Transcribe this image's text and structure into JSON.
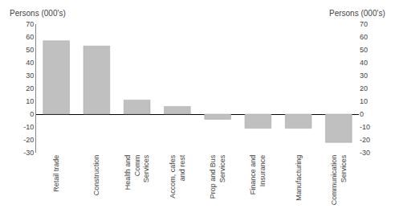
{
  "chart_data": {
    "type": "bar",
    "categories": [
      "Retail trade",
      "Construction",
      "Health and\nComm\nServices",
      "Accom, cafes\nand rest",
      "Prop and Bus\nServices",
      "Finance and\nInsurance",
      "Manufacturing",
      "Communication\nServices"
    ],
    "values": [
      57,
      53,
      11,
      6,
      -4,
      -11,
      -11,
      -22
    ],
    "color": "#c0c0c0",
    "ylabel": "Persons (000's)",
    "y2label": "Persons (000's)",
    "ylim": [
      -30,
      70
    ],
    "yticks": [
      -30,
      -20,
      -10,
      0,
      10,
      20,
      30,
      40,
      50,
      60,
      70
    ],
    "y2lim": [
      -30,
      70
    ],
    "y2ticks": [
      -30,
      -20,
      -10,
      0,
      10,
      20,
      30,
      40,
      50,
      60,
      70
    ],
    "grid": false
  }
}
